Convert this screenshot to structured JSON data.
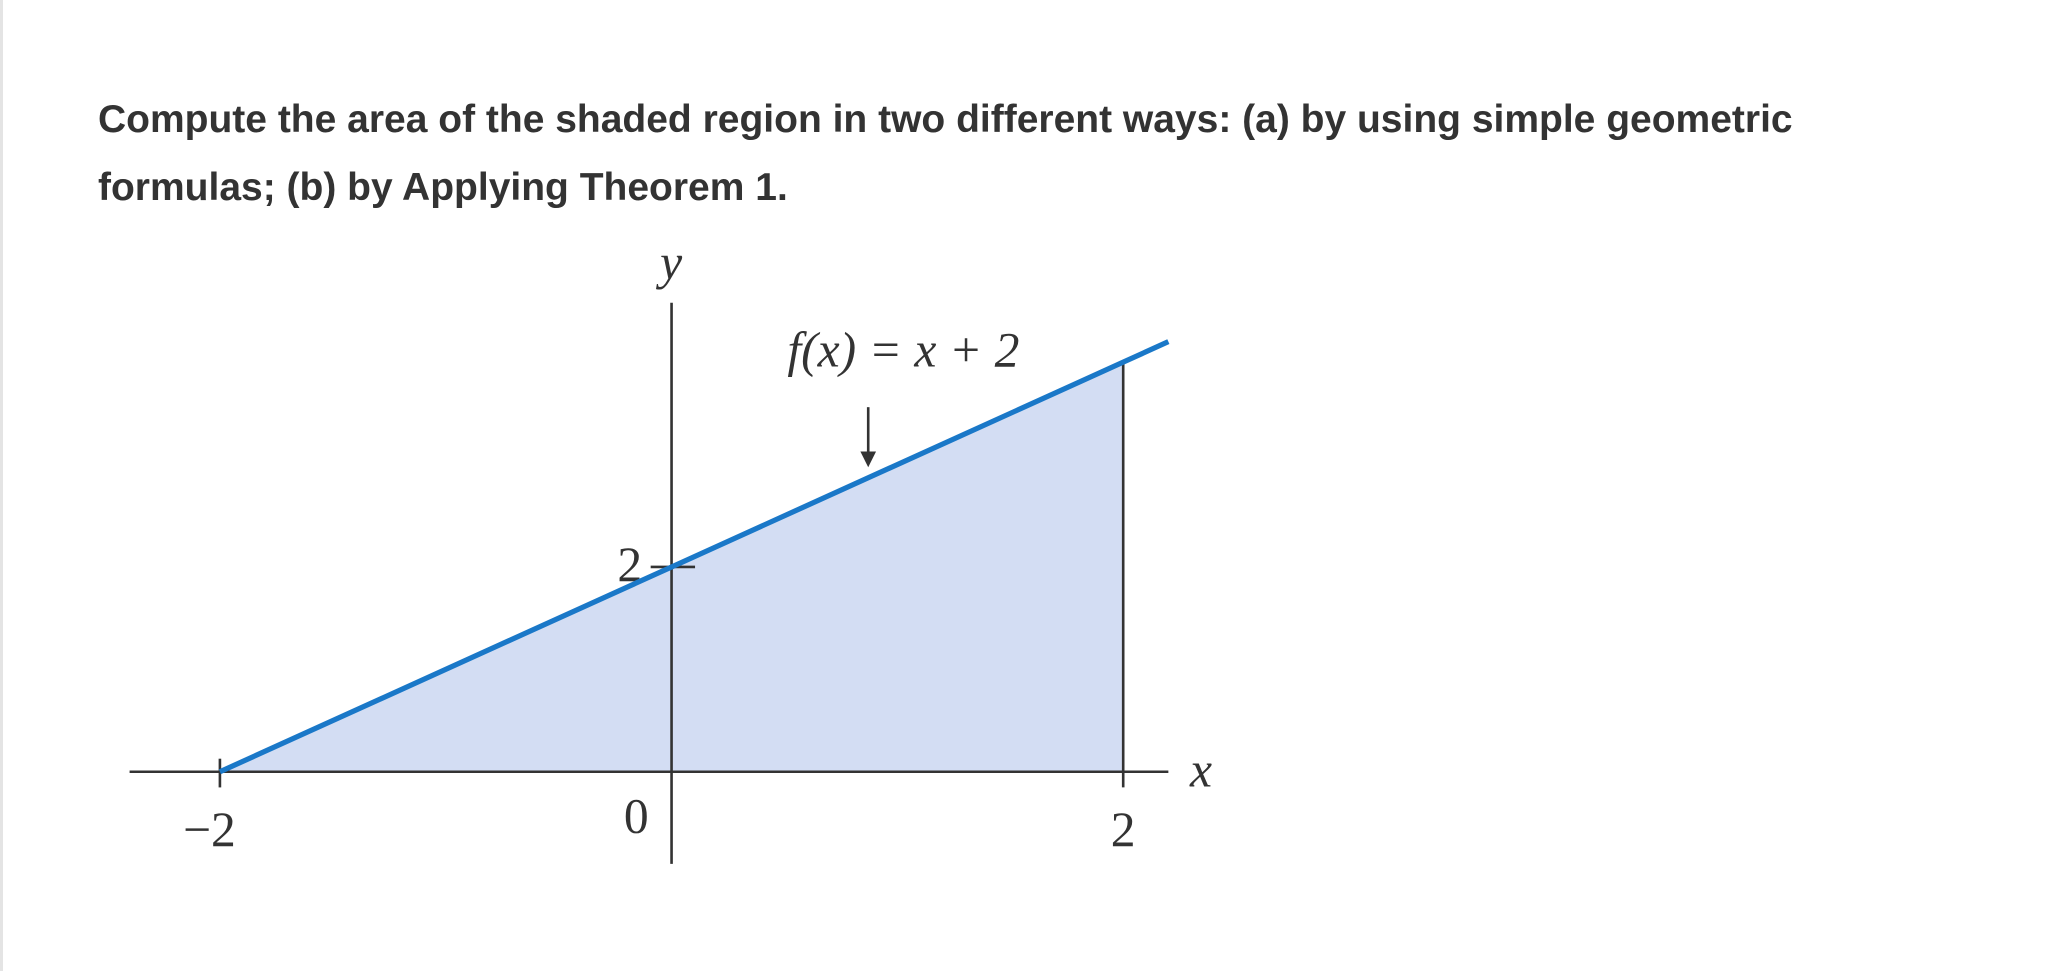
{
  "question": "Compute the area of the shaded region in two different ways: (a) by using simple geometric formulas; (b) by Applying Theorem 1.",
  "chart_data": {
    "type": "line",
    "x": [
      -2,
      0,
      2,
      2.2
    ],
    "values": [
      0,
      2,
      4,
      4.2
    ],
    "color": "#1a78c8",
    "fill": "#d3ddf3",
    "annotation": "f(x) = x + 2",
    "x_label": "x",
    "y_label": "y",
    "xlim": [
      -2.4,
      2.2
    ],
    "ylim": [
      -0.9,
      4.58
    ],
    "xticks": [
      {
        "value": -2,
        "label": "−2"
      },
      0,
      2
    ],
    "yticks": [
      2
    ]
  }
}
